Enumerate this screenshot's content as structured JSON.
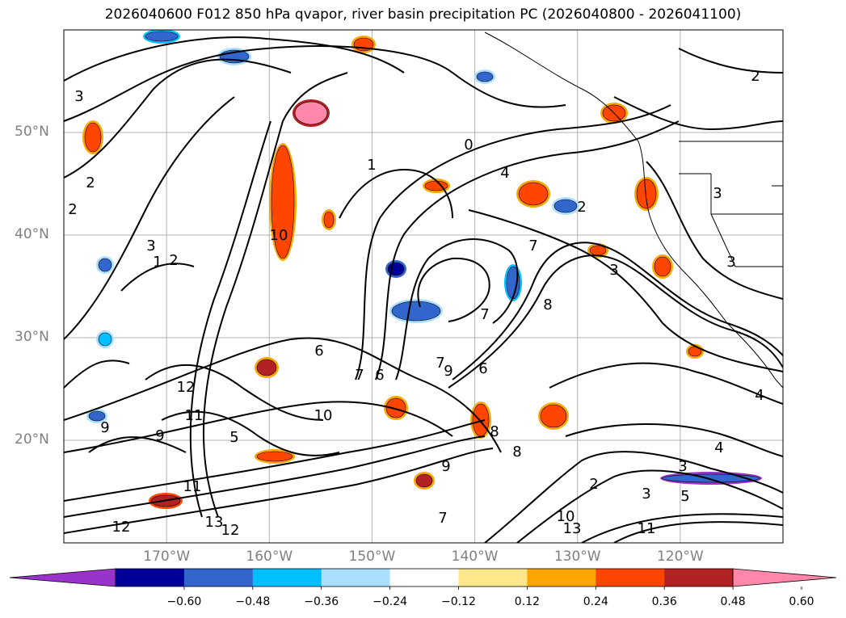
{
  "title": "2026040600 F012 850 hPa qvapor, river basin precipitation PC (2026040800 - 2026041100)",
  "map": {
    "projection": "plate-carree",
    "lon_range": [
      -180,
      -110
    ],
    "lat_range": [
      10,
      60
    ],
    "lat_labels": [
      "50°N",
      "40°N",
      "30°N",
      "20°N"
    ],
    "lon_labels": [
      "170°W",
      "160°W",
      "150°W",
      "140°W",
      "130°W",
      "120°W"
    ],
    "gridlines": true,
    "contour_color": "#000000",
    "contour_labels": [
      "3",
      "2",
      "1",
      "2",
      "3",
      "2",
      "6",
      "10",
      "4",
      "0",
      "3",
      "2",
      "7",
      "3",
      "2",
      "8",
      "9",
      "7",
      "6",
      "7",
      "7",
      "6",
      "8",
      "5",
      "9",
      "8",
      "9",
      "12",
      "13",
      "11",
      "13",
      "12",
      "11",
      "7",
      "4",
      "5",
      "3",
      "3",
      "4",
      "2",
      "3",
      "1",
      "9",
      "11",
      "10",
      "12",
      "10"
    ]
  },
  "colorbar": {
    "extend": "both",
    "colors": [
      "#9933cc",
      "#000099",
      "#3366cc",
      "#00bfff",
      "#aadfff",
      "#ffffff",
      "#ffe88c",
      "#ffa500",
      "#ff4500",
      "#b22222",
      "#ff88aa"
    ],
    "ticks": [
      "−0.60",
      "−0.48",
      "−0.36",
      "−0.24",
      "−0.12",
      "0.12",
      "0.24",
      "0.36",
      "0.48",
      "0.60"
    ]
  }
}
